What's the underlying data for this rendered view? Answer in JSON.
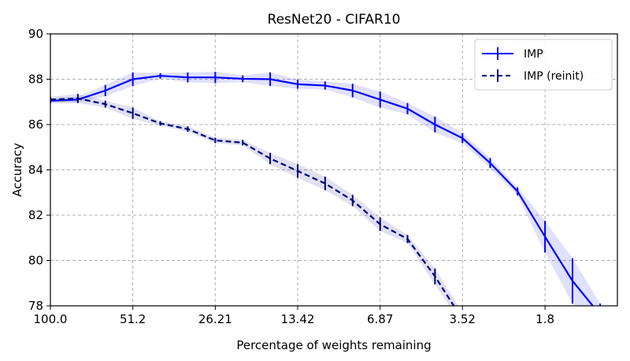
{
  "chart_data": {
    "type": "line",
    "title": "ResNet20 - CIFAR10",
    "xlabel": "Percentage of weights remaining",
    "ylabel": "Accuracy",
    "x_scale": "log (reversed, percentage of weights remaining)",
    "xlim": [
      100.0,
      1.0
    ],
    "ylim": [
      78,
      90
    ],
    "x_tick_labels": [
      "100.0",
      "51.2",
      "26.21",
      "13.42",
      "6.87",
      "3.52",
      "1.8"
    ],
    "x_ticks": [
      100.0,
      51.2,
      26.21,
      13.42,
      6.87,
      3.52,
      1.8
    ],
    "y_ticks": [
      78,
      80,
      82,
      84,
      86,
      88,
      90
    ],
    "grid": true,
    "legend_position": "top-right",
    "series": [
      {
        "name": "IMP",
        "color": "#0000ff",
        "line_style": "solid",
        "x": [
          100.0,
          80.0,
          64.0,
          51.2,
          40.96,
          32.77,
          26.21,
          20.97,
          16.78,
          13.42,
          10.74,
          8.59,
          6.87,
          5.5,
          4.4,
          3.52,
          2.81,
          2.25,
          1.8,
          1.44,
          1.15
        ],
        "y": [
          87.05,
          87.1,
          87.5,
          88.0,
          88.15,
          88.08,
          88.08,
          88.02,
          88.0,
          87.78,
          87.72,
          87.5,
          87.1,
          86.7,
          86.0,
          85.4,
          84.3,
          83.05,
          81.05,
          79.1,
          77.6
        ],
        "err": [
          0.12,
          0.12,
          0.25,
          0.3,
          0.12,
          0.22,
          0.25,
          0.15,
          0.3,
          0.2,
          0.18,
          0.3,
          0.35,
          0.25,
          0.35,
          0.22,
          0.22,
          0.18,
          0.7,
          1.0,
          0.5
        ]
      },
      {
        "name": "IMP (reinit)",
        "color": "#000080",
        "line_style": "dashed",
        "x": [
          100.0,
          80.0,
          64.0,
          51.2,
          40.96,
          32.77,
          26.21,
          20.97,
          16.78,
          13.42,
          10.74,
          8.59,
          6.87,
          5.5,
          4.4,
          3.52
        ],
        "y": [
          87.1,
          87.15,
          86.9,
          86.5,
          86.05,
          85.8,
          85.3,
          85.2,
          84.5,
          83.95,
          83.4,
          82.65,
          81.6,
          80.95,
          79.3,
          77.4
        ],
        "err": [
          0.12,
          0.2,
          0.15,
          0.25,
          0.1,
          0.12,
          0.12,
          0.12,
          0.25,
          0.3,
          0.3,
          0.25,
          0.3,
          0.18,
          0.35,
          0.3
        ]
      }
    ]
  }
}
